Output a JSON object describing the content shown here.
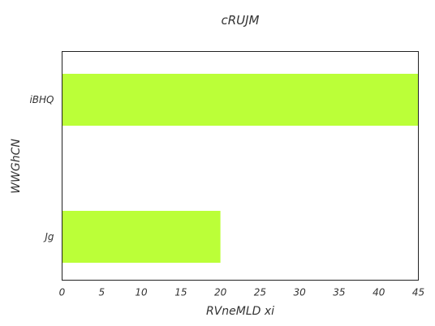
{
  "chart_data": {
    "type": "bar",
    "orientation": "horizontal",
    "title": "cRUJM",
    "xlabel": "RVneMLD  xi",
    "ylabel": "WWGhCN",
    "categories": [
      "iBHQ",
      "Jg"
    ],
    "values": [
      45,
      20
    ],
    "xlim": [
      0,
      45
    ],
    "xticks": [
      0,
      5,
      10,
      15,
      20,
      25,
      30,
      35,
      40,
      45
    ],
    "grid": false,
    "legend": "none",
    "bar_color": "#bbff38"
  }
}
